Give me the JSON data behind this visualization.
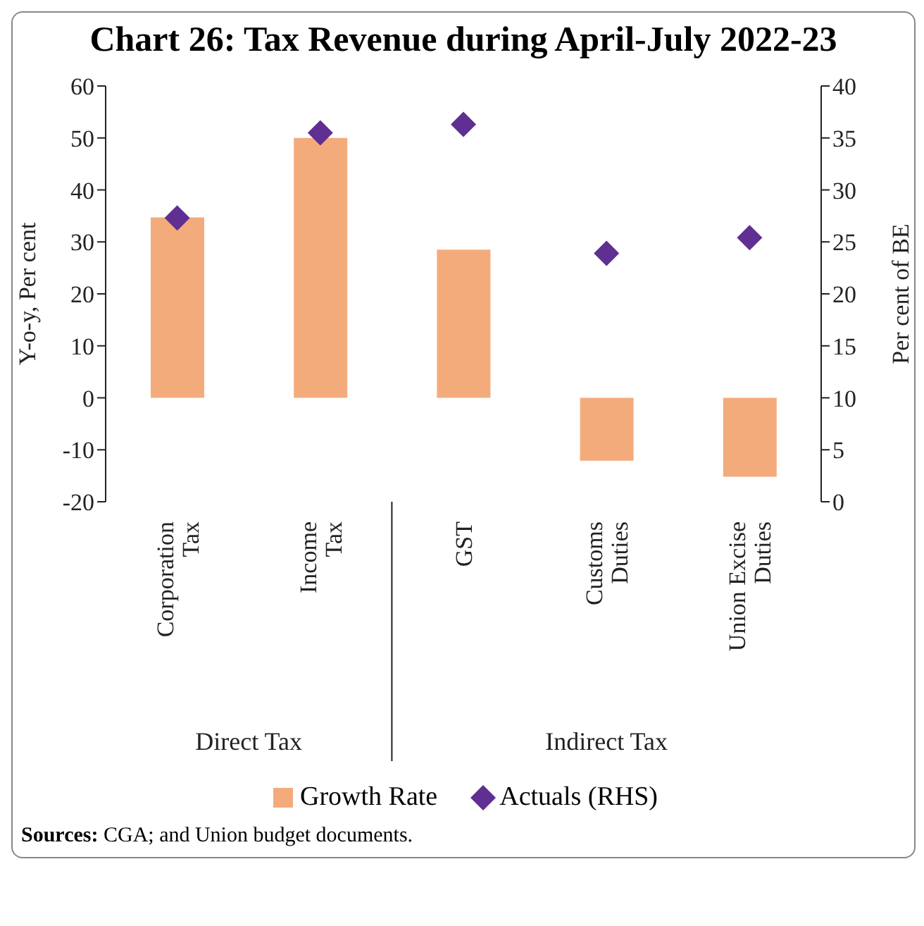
{
  "chart_data": {
    "type": "bar",
    "title": "Chart 26: Tax Revenue during April-July 2022-23",
    "ylabel": "Y-o-y, Per cent",
    "y2label": "Per cent of BE",
    "categories": [
      "Corporation Tax",
      "Income Tax",
      "GST",
      "Customs Duties",
      "Union Excise Duties"
    ],
    "series": [
      {
        "name": "Growth Rate",
        "color": "#f4ab7c",
        "values": [
          34.7,
          50,
          28.5,
          -12.1,
          -15.2
        ]
      },
      {
        "name": "Actuals (RHS)",
        "type": "scatter",
        "axis": "y2",
        "color": "#5f2f91",
        "values": [
          27.3,
          35.5,
          36.3,
          23.9,
          25.4
        ]
      }
    ],
    "ylim": [
      -20,
      60
    ],
    "yticks": [
      -20,
      -10,
      0,
      10,
      20,
      30,
      40,
      50,
      60
    ],
    "y2lim": [
      0,
      40
    ],
    "y2ticks": [
      0,
      5,
      10,
      15,
      20,
      25,
      30,
      35,
      40
    ],
    "marker": "diamond",
    "legend": "bottom",
    "grid": false,
    "annotations": [
      "Direct Tax",
      "Indirect Tax",
      "Sources: CGA; and Union budget documents."
    ]
  }
}
